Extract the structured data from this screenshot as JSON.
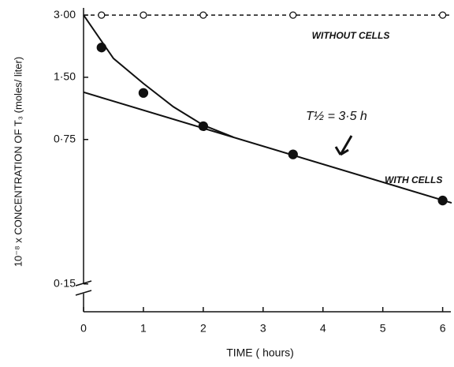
{
  "chart_data": {
    "type": "scatter",
    "x_label": "TIME ( hours)",
    "y_label": "10⁻⁸ x CONCENTRATION OF T₃ (moles/ liter)",
    "log_y": true,
    "xlim": [
      0,
      6.15
    ],
    "ylim": [
      0.11,
      3.25
    ],
    "xticks": [
      0,
      1,
      2,
      3,
      4,
      5,
      6
    ],
    "yticks": [
      {
        "value": 3,
        "label": "3·00"
      },
      {
        "value": 1.5,
        "label": "1·50"
      },
      {
        "value": 0.75,
        "label": "0·75"
      },
      {
        "value": 0.15,
        "label": "0·15"
      }
    ],
    "series": [
      {
        "name": "WITHOUT CELLS",
        "marker": "open",
        "color": "#111",
        "x": [
          0.3,
          1,
          2,
          3.5,
          6
        ],
        "values": [
          3,
          3,
          3,
          3,
          3
        ]
      },
      {
        "name": "WITH CELLS",
        "marker": "filled",
        "color": "#111",
        "x": [
          0.3,
          1,
          2,
          3.5,
          6
        ],
        "values": [
          2.09,
          1.26,
          0.87,
          0.635,
          0.38
        ]
      }
    ],
    "fits": [
      {
        "dashed": true,
        "x": [
          0,
          6.15
        ],
        "values": [
          3,
          3
        ]
      },
      {
        "dashed": false,
        "x": [
          0,
          6.15
        ],
        "values": [
          1.27,
          0.37
        ]
      },
      {
        "dashed": false,
        "x": [
          0,
          0.5,
          1,
          1.5,
          2,
          2.5
        ],
        "values": [
          3,
          1.85,
          1.4,
          1.08,
          0.88,
          0.77
        ]
      }
    ],
    "annotation": "T½ = 3·5 h"
  }
}
